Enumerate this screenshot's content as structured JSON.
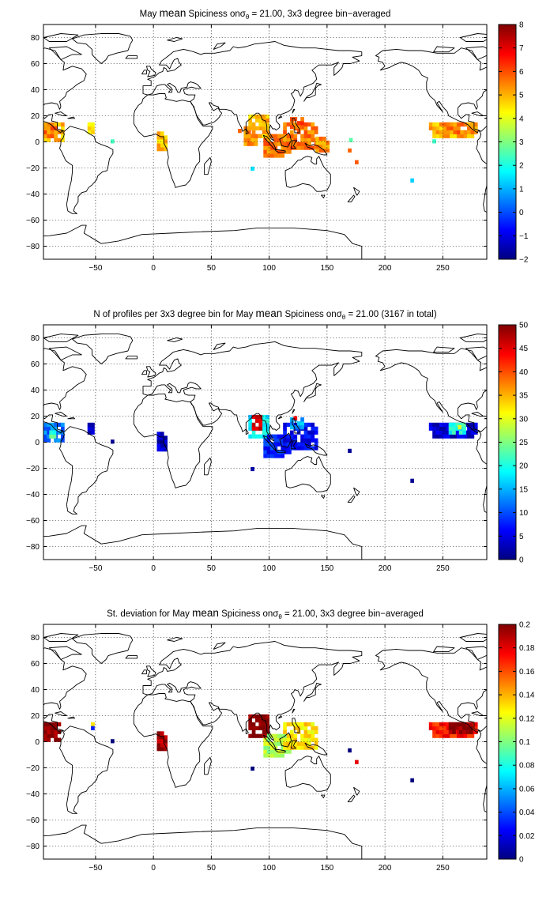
{
  "figure": {
    "panels": [
      {
        "id": "spiciness",
        "title_parts": [
          "May ",
          "mean",
          " Spiciness onσ",
          "θ",
          " = 21.00, 3x3 degree bin−averaged"
        ],
        "colorbar": {
          "ticks": [
            "8",
            "7",
            "6",
            "5",
            "4",
            "3",
            "2",
            "1",
            "0",
            "−1",
            "−2"
          ],
          "min": -2,
          "max": 8
        },
        "regions": [
          {
            "lon_min": -95,
            "lon_max": -78,
            "lat_min": 0,
            "lat_max": 13,
            "value": 5.0
          },
          {
            "lon_min": -95,
            "lon_max": -85,
            "lat_min": 3,
            "lat_max": 10,
            "value": 5.6
          },
          {
            "lon_min": -57,
            "lon_max": -52,
            "lat_min": 6,
            "lat_max": 15,
            "value": 4.4
          },
          {
            "lon_min": 3,
            "lon_max": 10,
            "lat_min": -7,
            "lat_max": 6,
            "value": 4.8
          },
          {
            "lon_min": 82,
            "lon_max": 98,
            "lat_min": 3,
            "lat_max": 21,
            "value": 4.9
          },
          {
            "lon_min": 78,
            "lon_max": 88,
            "lat_min": -3,
            "lat_max": 10,
            "value": 5.4
          },
          {
            "lon_min": 95,
            "lon_max": 118,
            "lat_min": -12,
            "lat_max": 4,
            "value": 5.6
          },
          {
            "lon_min": 112,
            "lon_max": 140,
            "lat_min": -6,
            "lat_max": 15,
            "value": 5.6
          },
          {
            "lon_min": 118,
            "lon_max": 128,
            "lat_min": 10,
            "lat_max": 19,
            "value": 5.8
          },
          {
            "lon_min": 140,
            "lon_max": 150,
            "lat_min": -8,
            "lat_max": 4,
            "value": 5.3
          },
          {
            "lon_min": 238,
            "lon_max": 280,
            "lat_min": 3,
            "lat_max": 15,
            "value": 5.0
          },
          {
            "lon_min": 250,
            "lon_max": 275,
            "lat_min": 6,
            "lat_max": 13,
            "value": 5.5
          }
        ],
        "cells": [
          {
            "lon": 84,
            "lat": -22,
            "value": 1.5
          },
          {
            "lon": 222,
            "lat": -31,
            "value": 1.3
          },
          {
            "lon": -37,
            "lat": -1,
            "value": 2.4
          },
          {
            "lon": 169,
            "lat": 0,
            "value": 2.6
          },
          {
            "lon": 241,
            "lat": -1,
            "value": 2.3
          },
          {
            "lon": 73,
            "lat": 7,
            "value": 5.8
          },
          {
            "lon": 168,
            "lat": -8,
            "value": 5.8
          },
          {
            "lon": 174,
            "lat": -17,
            "value": 5.9
          }
        ]
      },
      {
        "id": "profiles",
        "title_parts": [
          "N of profiles per 3x3 degree bin for May ",
          "mean",
          " Spiciness onσ",
          "θ",
          " = 21.00 (3167 in total)"
        ],
        "colorbar": {
          "ticks": [
            "50",
            "45",
            "40",
            "35",
            "30",
            "25",
            "20",
            "15",
            "10",
            "5",
            "0"
          ],
          "min": 0,
          "max": 50
        },
        "regions": [
          {
            "lon_min": -95,
            "lon_max": -78,
            "lat_min": 0,
            "lat_max": 13,
            "value": 12
          },
          {
            "lon_min": -90,
            "lon_max": -84,
            "lat_min": 3,
            "lat_max": 9,
            "value": 22
          },
          {
            "lon_min": -57,
            "lon_max": -52,
            "lat_min": 6,
            "lat_max": 15,
            "value": 3
          },
          {
            "lon_min": 3,
            "lon_max": 10,
            "lat_min": -7,
            "lat_max": 6,
            "value": 3
          },
          {
            "lon_min": 82,
            "lon_max": 98,
            "lat_min": 3,
            "lat_max": 21,
            "value": 18
          },
          {
            "lon_min": 85,
            "lon_max": 93,
            "lat_min": 9,
            "lat_max": 21,
            "value": 46
          },
          {
            "lon_min": 95,
            "lon_max": 118,
            "lat_min": -12,
            "lat_max": 4,
            "value": 8
          },
          {
            "lon_min": 112,
            "lon_max": 140,
            "lat_min": -6,
            "lat_max": 15,
            "value": 6
          },
          {
            "lon_min": 118,
            "lon_max": 128,
            "lat_min": 10,
            "lat_max": 19,
            "value": 14
          },
          {
            "lon_min": 238,
            "lon_max": 280,
            "lat_min": 3,
            "lat_max": 15,
            "value": 4
          },
          {
            "lon_min": 255,
            "lon_max": 268,
            "lat_min": 6,
            "lat_max": 13,
            "value": 20
          }
        ],
        "cells": [
          {
            "lon": 84,
            "lat": -22,
            "value": 2
          },
          {
            "lon": 222,
            "lat": -31,
            "value": 1
          },
          {
            "lon": -37,
            "lat": -1,
            "value": 1
          },
          {
            "lon": 168,
            "lat": -8,
            "value": 1
          },
          {
            "lon": 121,
            "lat": 17,
            "value": 44
          },
          {
            "lon": 263,
            "lat": 10,
            "value": 30
          }
        ]
      },
      {
        "id": "stdev",
        "title_parts": [
          "St. deviation for May ",
          "mean",
          " Spiciness onσ",
          "θ",
          " = 21.00, 3x3 degree bin−averaged"
        ],
        "colorbar": {
          "ticks": [
            "0.2",
            "0.18",
            "0.16",
            "0.14",
            "0.12",
            "0.1",
            "0.08",
            "0.06",
            "0.04",
            "0.02",
            "0"
          ],
          "min": 0,
          "max": 0.2
        },
        "regions": [
          {
            "lon_min": -95,
            "lon_max": -80,
            "lat_min": 0,
            "lat_max": 13,
            "value": 0.2
          },
          {
            "lon_min": 3,
            "lon_max": 10,
            "lat_min": -7,
            "lat_max": 6,
            "value": 0.19
          },
          {
            "lon_min": 82,
            "lon_max": 98,
            "lat_min": 3,
            "lat_max": 21,
            "value": 0.2
          },
          {
            "lon_min": 95,
            "lon_max": 118,
            "lat_min": -12,
            "lat_max": 4,
            "value": 0.11
          },
          {
            "lon_min": 112,
            "lon_max": 140,
            "lat_min": -6,
            "lat_max": 15,
            "value": 0.13
          },
          {
            "lon_min": 238,
            "lon_max": 280,
            "lat_min": 3,
            "lat_max": 15,
            "value": 0.17
          },
          {
            "lon_min": 255,
            "lon_max": 275,
            "lat_min": 6,
            "lat_max": 13,
            "value": 0.2
          }
        ],
        "cells": [
          {
            "lon": 84,
            "lat": -22,
            "value": 0.0
          },
          {
            "lon": 222,
            "lat": -31,
            "value": 0.0
          },
          {
            "lon": -37,
            "lat": -1,
            "value": 0.0
          },
          {
            "lon": 168,
            "lat": -8,
            "value": 0.0
          },
          {
            "lon": 174,
            "lat": -17,
            "value": 0.18
          },
          {
            "lon": -54,
            "lat": 12,
            "value": 0.13
          },
          {
            "lon": -54,
            "lat": 9,
            "value": 0.03
          }
        ]
      }
    ],
    "map": {
      "lon_range": [
        -95,
        288
      ],
      "lat_range": [
        -90,
        90
      ],
      "x_ticks": [
        "-50",
        "0",
        "50",
        "100",
        "150",
        "200",
        "250"
      ],
      "x_tick_values": [
        -50,
        0,
        50,
        100,
        150,
        200,
        250
      ],
      "y_ticks": [
        "80",
        "60",
        "40",
        "20",
        "0",
        "-20",
        "-40",
        "-60",
        "-80"
      ],
      "y_tick_values": [
        80,
        60,
        40,
        20,
        0,
        -20,
        -40,
        -60,
        -80
      ],
      "grid": true,
      "colormap": "jet",
      "coastline_color": "#000000"
    }
  }
}
